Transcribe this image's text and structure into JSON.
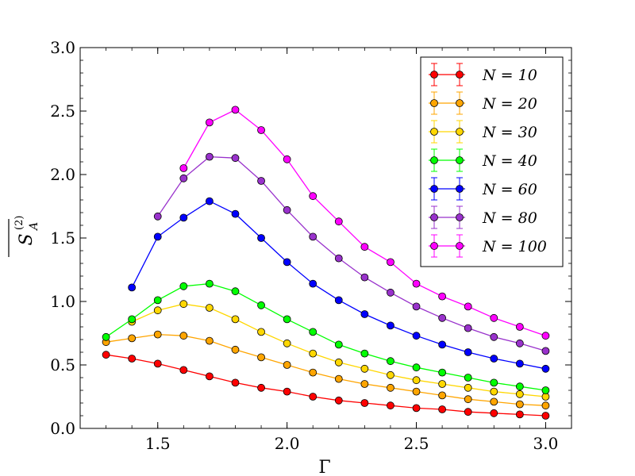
{
  "chart_data": {
    "type": "line",
    "xlabel": "Γ",
    "ylabel": "S_A^(2)",
    "xlim": [
      1.2,
      3.1
    ],
    "ylim": [
      0.0,
      3.0
    ],
    "xticks": [
      "1.5",
      "2.0",
      "2.5",
      "3.0"
    ],
    "yticks": [
      "0.0",
      "0.5",
      "1.0",
      "1.5",
      "2.0",
      "2.5",
      "3.0"
    ],
    "grid": false,
    "legend_position": "top-right",
    "series": [
      {
        "name": "N = 10",
        "color": "#ff0000",
        "x": [
          1.3,
          1.4,
          1.5,
          1.6,
          1.7,
          1.8,
          1.9,
          2.0,
          2.1,
          2.2,
          2.3,
          2.4,
          2.5,
          2.6,
          2.7,
          2.8,
          2.9,
          3.0
        ],
        "y": [
          0.58,
          0.55,
          0.51,
          0.46,
          0.41,
          0.36,
          0.32,
          0.29,
          0.25,
          0.22,
          0.2,
          0.18,
          0.16,
          0.15,
          0.13,
          0.12,
          0.11,
          0.1
        ]
      },
      {
        "name": "N = 20",
        "color": "#ffa500",
        "x": [
          1.3,
          1.4,
          1.5,
          1.6,
          1.7,
          1.8,
          1.9,
          2.0,
          2.1,
          2.2,
          2.3,
          2.4,
          2.5,
          2.6,
          2.7,
          2.8,
          2.9,
          3.0
        ],
        "y": [
          0.68,
          0.71,
          0.74,
          0.73,
          0.69,
          0.62,
          0.56,
          0.5,
          0.44,
          0.39,
          0.35,
          0.32,
          0.29,
          0.26,
          0.23,
          0.21,
          0.19,
          0.18
        ]
      },
      {
        "name": "N = 30",
        "color": "#ffd700",
        "x": [
          1.4,
          1.5,
          1.6,
          1.7,
          1.8,
          1.9,
          2.0,
          2.1,
          2.2,
          2.3,
          2.4,
          2.5,
          2.6,
          2.7,
          2.8,
          2.9,
          3.0
        ],
        "y": [
          0.84,
          0.93,
          0.98,
          0.95,
          0.86,
          0.76,
          0.67,
          0.59,
          0.52,
          0.47,
          0.42,
          0.38,
          0.35,
          0.32,
          0.29,
          0.27,
          0.25
        ]
      },
      {
        "name": "N = 40",
        "color": "#00ff00",
        "x": [
          1.3,
          1.4,
          1.5,
          1.6,
          1.7,
          1.8,
          1.9,
          2.0,
          2.1,
          2.2,
          2.3,
          2.4,
          2.5,
          2.6,
          2.7,
          2.8,
          2.9,
          3.0
        ],
        "y": [
          0.72,
          0.86,
          1.01,
          1.12,
          1.14,
          1.08,
          0.97,
          0.86,
          0.76,
          0.66,
          0.59,
          0.53,
          0.48,
          0.44,
          0.4,
          0.36,
          0.33,
          0.3
        ]
      },
      {
        "name": "N = 60",
        "color": "#0000ff",
        "x": [
          1.4,
          1.5,
          1.6,
          1.7,
          1.8,
          1.9,
          2.0,
          2.1,
          2.2,
          2.3,
          2.4,
          2.5,
          2.6,
          2.7,
          2.8,
          2.9,
          3.0
        ],
        "y": [
          1.11,
          1.51,
          1.66,
          1.79,
          1.69,
          1.5,
          1.31,
          1.14,
          1.01,
          0.9,
          0.81,
          0.73,
          0.66,
          0.6,
          0.55,
          0.51,
          0.47
        ]
      },
      {
        "name": "N = 80",
        "color": "#9932cc",
        "x": [
          1.5,
          1.6,
          1.7,
          1.8,
          1.9,
          2.0,
          2.1,
          2.2,
          2.3,
          2.4,
          2.5,
          2.6,
          2.7,
          2.8,
          2.9,
          3.0
        ],
        "y": [
          1.67,
          1.97,
          2.14,
          2.13,
          1.95,
          1.72,
          1.51,
          1.34,
          1.19,
          1.07,
          0.96,
          0.87,
          0.79,
          0.72,
          0.67,
          0.61
        ]
      },
      {
        "name": "N = 100",
        "color": "#ff00ff",
        "x": [
          1.6,
          1.7,
          1.8,
          1.9,
          2.0,
          2.1,
          2.2,
          2.3,
          2.4,
          2.5,
          2.6,
          2.7,
          2.8,
          2.9,
          3.0
        ],
        "y": [
          2.05,
          2.41,
          2.51,
          2.35,
          2.12,
          1.83,
          1.63,
          1.43,
          1.31,
          1.14,
          1.04,
          0.96,
          0.87,
          0.8,
          0.73
        ]
      }
    ]
  }
}
